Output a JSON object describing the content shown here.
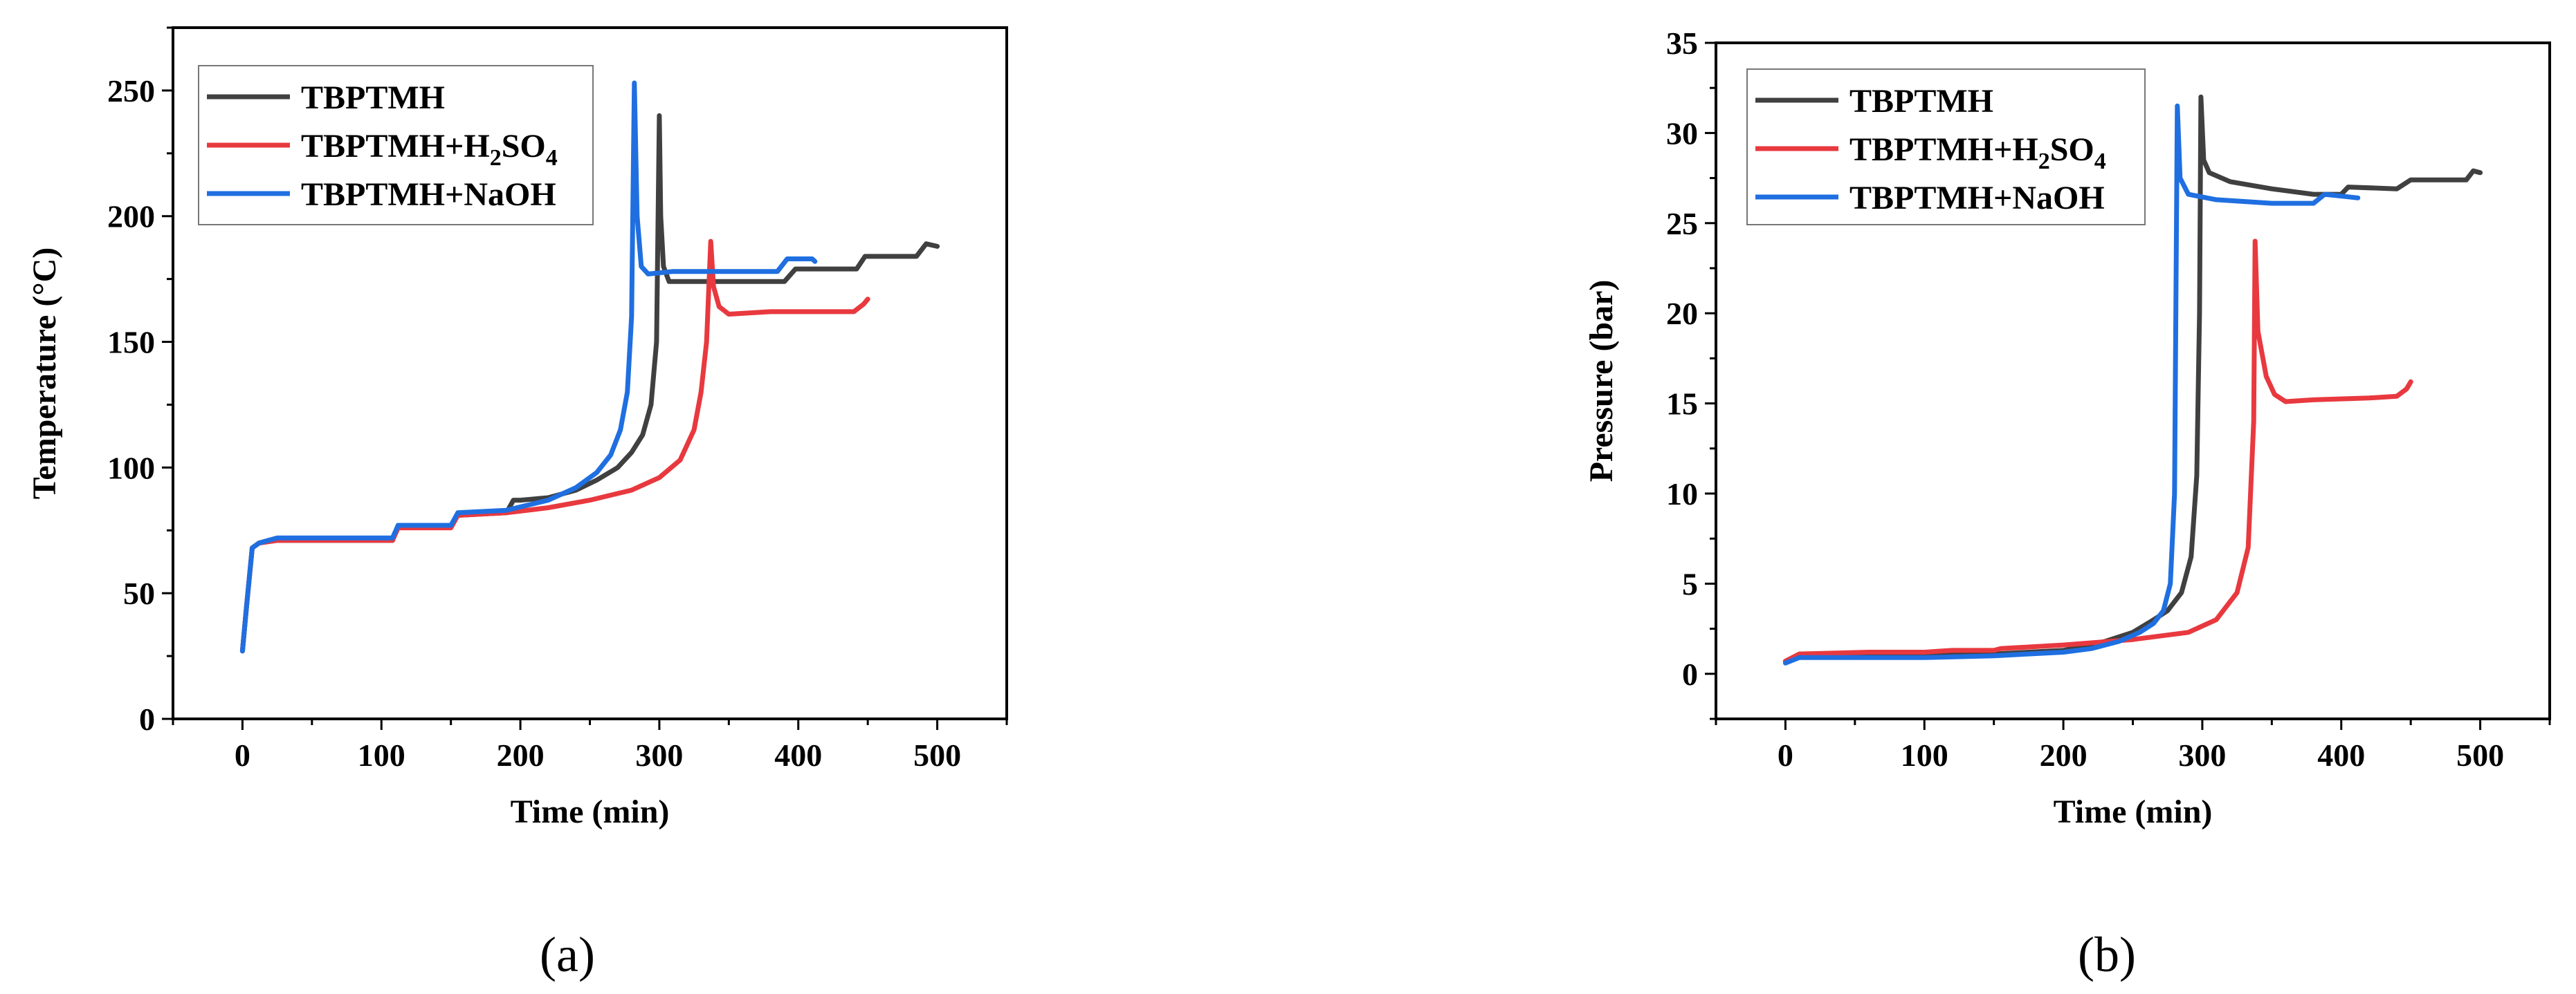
{
  "panels": [
    {
      "panel_label": "(a)",
      "chart_data": {
        "type": "line",
        "xlabel": "Time (min)",
        "ylabel": "Temperature (°C)",
        "xlim": [
          -50,
          550
        ],
        "ylim": [
          0,
          275
        ],
        "xticks": [
          0,
          100,
          200,
          300,
          400,
          500
        ],
        "yticks": [
          0,
          50,
          100,
          150,
          200,
          250
        ],
        "legend_position": "top-left",
        "series": [
          {
            "name": "TBPTMH",
            "color": "#404040",
            "points": [
              [
                0,
                27
              ],
              [
                3,
                45
              ],
              [
                7,
                68
              ],
              [
                12,
                70
              ],
              [
                25,
                71
              ],
              [
                60,
                71
              ],
              [
                100,
                71
              ],
              [
                108,
                71
              ],
              [
                112,
                77
              ],
              [
                150,
                77
              ],
              [
                155,
                81
              ],
              [
                190,
                82
              ],
              [
                195,
                87
              ],
              [
                200,
                87
              ],
              [
                220,
                88
              ],
              [
                240,
                91
              ],
              [
                255,
                95
              ],
              [
                270,
                100
              ],
              [
                280,
                106
              ],
              [
                288,
                113
              ],
              [
                294,
                125
              ],
              [
                298,
                150
              ],
              [
                300,
                240
              ],
              [
                301,
                200
              ],
              [
                303,
                180
              ],
              [
                307,
                174
              ],
              [
                330,
                174
              ],
              [
                370,
                174
              ],
              [
                390,
                174
              ],
              [
                398,
                179
              ],
              [
                420,
                179
              ],
              [
                442,
                179
              ],
              [
                448,
                184
              ],
              [
                485,
                184
              ],
              [
                492,
                189
              ],
              [
                500,
                188
              ]
            ]
          },
          {
            "name": "TBPTMH+H",
            "name_sub": "2",
            "name_mid": "SO",
            "name_sub2": "4",
            "color": "#e8393f",
            "points": [
              [
                0,
                27
              ],
              [
                3,
                45
              ],
              [
                7,
                68
              ],
              [
                12,
                70
              ],
              [
                25,
                71
              ],
              [
                60,
                71
              ],
              [
                100,
                71
              ],
              [
                108,
                71
              ],
              [
                112,
                76
              ],
              [
                150,
                76
              ],
              [
                155,
                81
              ],
              [
                190,
                82
              ],
              [
                220,
                84
              ],
              [
                250,
                87
              ],
              [
                280,
                91
              ],
              [
                300,
                96
              ],
              [
                315,
                103
              ],
              [
                325,
                115
              ],
              [
                330,
                130
              ],
              [
                334,
                150
              ],
              [
                337,
                190
              ],
              [
                339,
                172
              ],
              [
                343,
                164
              ],
              [
                350,
                161
              ],
              [
                380,
                162
              ],
              [
                420,
                162
              ],
              [
                440,
                162
              ],
              [
                447,
                165
              ],
              [
                450,
                167
              ]
            ]
          },
          {
            "name": "TBPTMH+NaOH",
            "color": "#1f6fe0",
            "points": [
              [
                0,
                27
              ],
              [
                3,
                45
              ],
              [
                7,
                68
              ],
              [
                12,
                70
              ],
              [
                25,
                72
              ],
              [
                60,
                72
              ],
              [
                100,
                72
              ],
              [
                108,
                72
              ],
              [
                112,
                77
              ],
              [
                150,
                77
              ],
              [
                155,
                82
              ],
              [
                190,
                83
              ],
              [
                220,
                87
              ],
              [
                240,
                92
              ],
              [
                255,
                98
              ],
              [
                265,
                105
              ],
              [
                272,
                115
              ],
              [
                277,
                130
              ],
              [
                280,
                160
              ],
              [
                282,
                253
              ],
              [
                284,
                200
              ],
              [
                287,
                180
              ],
              [
                292,
                177
              ],
              [
                310,
                178
              ],
              [
                340,
                178
              ],
              [
                385,
                178
              ],
              [
                392,
                183
              ],
              [
                410,
                183
              ],
              [
                412,
                182
              ]
            ]
          }
        ]
      }
    },
    {
      "panel_label": "(b)",
      "chart_data": {
        "type": "line",
        "xlabel": "Time (min)",
        "ylabel": "Pressure (bar)",
        "xlim": [
          -50,
          550
        ],
        "ylim": [
          -2.5,
          35
        ],
        "xticks": [
          0,
          100,
          200,
          300,
          400,
          500
        ],
        "yticks": [
          0,
          5,
          10,
          15,
          20,
          25,
          30,
          35
        ],
        "legend_position": "top-left",
        "series": [
          {
            "name": "TBPTMH",
            "color": "#404040",
            "points": [
              [
                0,
                0.7
              ],
              [
                10,
                1.0
              ],
              [
                50,
                1.0
              ],
              [
                100,
                1.0
              ],
              [
                150,
                1.1
              ],
              [
                200,
                1.3
              ],
              [
                230,
                1.8
              ],
              [
                250,
                2.3
              ],
              [
                265,
                3.0
              ],
              [
                275,
                3.5
              ],
              [
                285,
                4.5
              ],
              [
                292,
                6.5
              ],
              [
                296,
                11
              ],
              [
                298,
                20
              ],
              [
                299,
                32
              ],
              [
                301,
                28.5
              ],
              [
                305,
                27.8
              ],
              [
                320,
                27.3
              ],
              [
                350,
                26.9
              ],
              [
                380,
                26.6
              ],
              [
                400,
                26.6
              ],
              [
                405,
                27.0
              ],
              [
                440,
                26.9
              ],
              [
                450,
                27.4
              ],
              [
                490,
                27.4
              ],
              [
                495,
                27.9
              ],
              [
                500,
                27.8
              ]
            ]
          },
          {
            "name": "TBPTMH+H",
            "name_sub": "2",
            "name_mid": "SO",
            "name_sub2": "4",
            "color": "#e8393f",
            "points": [
              [
                0,
                0.7
              ],
              [
                10,
                1.1
              ],
              [
                60,
                1.2
              ],
              [
                100,
                1.2
              ],
              [
                120,
                1.3
              ],
              [
                150,
                1.3
              ],
              [
                155,
                1.4
              ],
              [
                200,
                1.6
              ],
              [
                250,
                1.9
              ],
              [
                290,
                2.3
              ],
              [
                310,
                3.0
              ],
              [
                325,
                4.5
              ],
              [
                333,
                7
              ],
              [
                337,
                14
              ],
              [
                338,
                24
              ],
              [
                340,
                19
              ],
              [
                346,
                16.5
              ],
              [
                352,
                15.5
              ],
              [
                360,
                15.1
              ],
              [
                380,
                15.2
              ],
              [
                420,
                15.3
              ],
              [
                440,
                15.4
              ],
              [
                447,
                15.8
              ],
              [
                450,
                16.2
              ]
            ]
          },
          {
            "name": "TBPTMH+NaOH",
            "color": "#1f6fe0",
            "points": [
              [
                0,
                0.6
              ],
              [
                10,
                0.9
              ],
              [
                50,
                0.9
              ],
              [
                100,
                0.9
              ],
              [
                150,
                1.0
              ],
              [
                200,
                1.2
              ],
              [
                220,
                1.4
              ],
              [
                240,
                1.8
              ],
              [
                255,
                2.3
              ],
              [
                265,
                2.8
              ],
              [
                272,
                3.5
              ],
              [
                277,
                5
              ],
              [
                280,
                10
              ],
              [
                282,
                31.5
              ],
              [
                284,
                27.5
              ],
              [
                290,
                26.6
              ],
              [
                310,
                26.3
              ],
              [
                350,
                26.1
              ],
              [
                380,
                26.1
              ],
              [
                388,
                26.6
              ],
              [
                400,
                26.5
              ],
              [
                412,
                26.4
              ]
            ]
          }
        ]
      }
    }
  ]
}
